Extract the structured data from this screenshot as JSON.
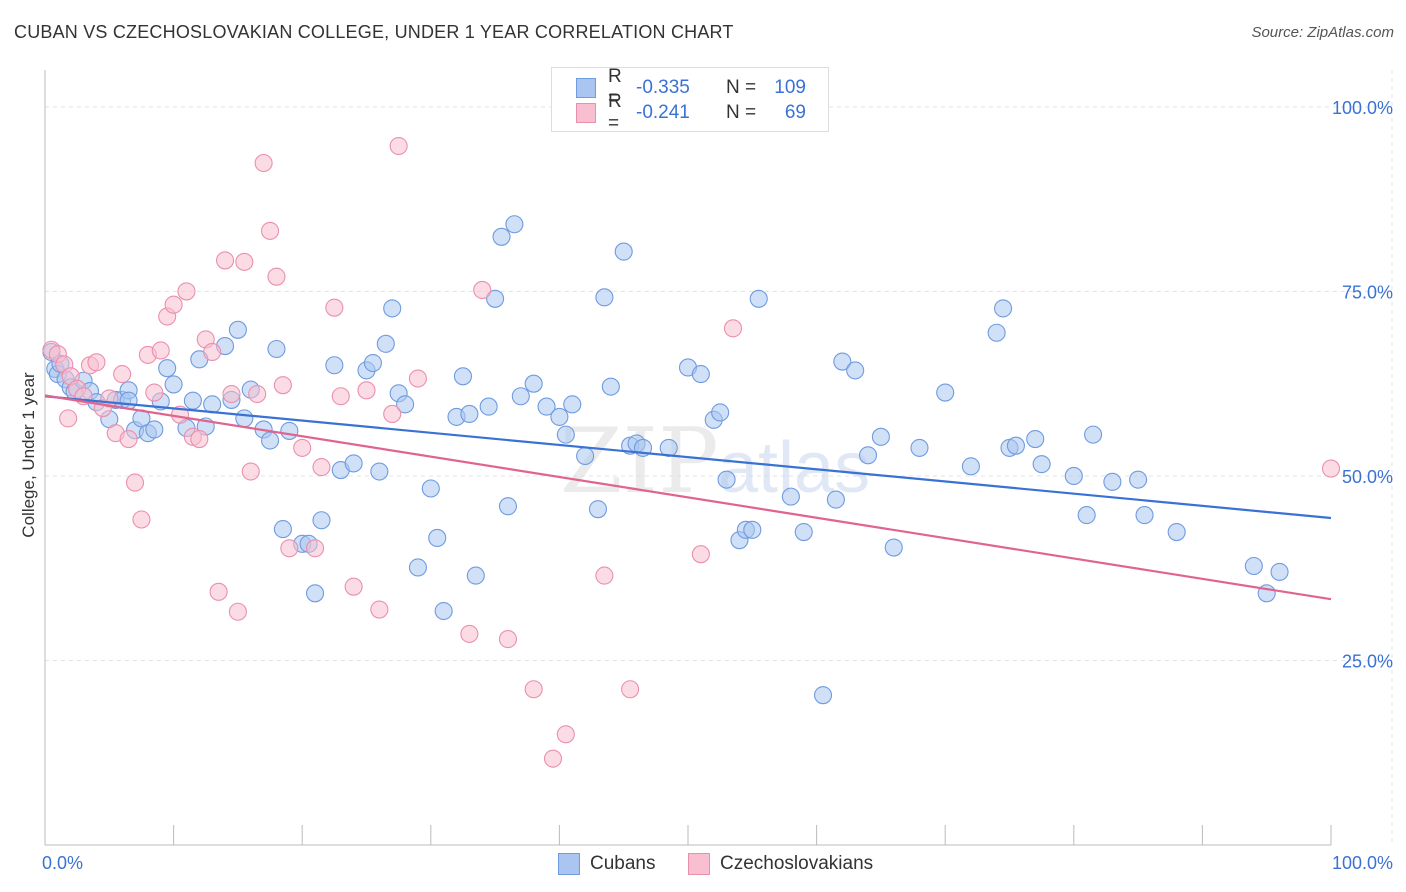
{
  "title": "CUBAN VS CZECHOSLOVAKIAN COLLEGE, UNDER 1 YEAR CORRELATION CHART",
  "source": "Source: ZipAtlas.com",
  "watermark": {
    "zip": "ZIP",
    "atlas": "atlas"
  },
  "legend": {
    "r_label": "R =",
    "n_label": "N =",
    "rows": [
      {
        "series": "Cubans",
        "r": "-0.335",
        "n": "109",
        "fill": "#aac6f0",
        "stroke": "#6f9be0"
      },
      {
        "series": "Czechoslovakians",
        "r": "-0.241",
        "n": "69",
        "fill": "#f7bfd0",
        "stroke": "#eb8fae"
      }
    ]
  },
  "bottom_legend": [
    "Cubans",
    "Czechoslovakians"
  ],
  "chart_data": {
    "type": "scatter",
    "xlabel": "",
    "ylabel": "College, Under 1 year",
    "xlim": [
      0,
      100
    ],
    "ylim": [
      0,
      105
    ],
    "x_tick_labels": [
      "0.0%",
      "100.0%"
    ],
    "y_tick_labels": [
      "25.0%",
      "50.0%",
      "75.0%",
      "100.0%"
    ],
    "y_ticks": [
      25,
      50,
      75,
      100
    ],
    "grid": true,
    "legend_position": "top-center",
    "series": [
      {
        "name": "Cubans",
        "color": "#3a72d4",
        "trend": {
          "x": [
            0,
            100
          ],
          "y": [
            60.8,
            44.3
          ]
        },
        "points": [
          [
            0.5,
            66.8
          ],
          [
            0.8,
            64.5
          ],
          [
            1.0,
            63.8
          ],
          [
            1.2,
            65.2
          ],
          [
            1.6,
            63.1
          ],
          [
            2.0,
            62.0
          ],
          [
            2.3,
            61.4
          ],
          [
            3.0,
            62.9
          ],
          [
            3.5,
            61.5
          ],
          [
            4.0,
            60.0
          ],
          [
            5.0,
            57.7
          ],
          [
            5.5,
            60.3
          ],
          [
            6.0,
            60.3
          ],
          [
            6.5,
            61.6
          ],
          [
            6.5,
            60.2
          ],
          [
            7.0,
            56.2
          ],
          [
            7.5,
            57.8
          ],
          [
            8.0,
            55.8
          ],
          [
            8.5,
            56.3
          ],
          [
            9.0,
            60.1
          ],
          [
            9.5,
            64.6
          ],
          [
            10.0,
            62.4
          ],
          [
            11.0,
            56.5
          ],
          [
            11.5,
            60.2
          ],
          [
            12.0,
            65.8
          ],
          [
            12.5,
            56.7
          ],
          [
            13.0,
            59.7
          ],
          [
            14.0,
            67.6
          ],
          [
            14.5,
            60.3
          ],
          [
            15.0,
            69.8
          ],
          [
            15.5,
            57.8
          ],
          [
            16.0,
            61.7
          ],
          [
            17.0,
            56.3
          ],
          [
            17.5,
            54.8
          ],
          [
            18.0,
            67.2
          ],
          [
            18.5,
            42.8
          ],
          [
            19.0,
            56.1
          ],
          [
            20.0,
            40.8
          ],
          [
            20.5,
            40.8
          ],
          [
            21.0,
            34.1
          ],
          [
            21.5,
            44.0
          ],
          [
            22.5,
            65.0
          ],
          [
            23.0,
            50.8
          ],
          [
            24.0,
            51.7
          ],
          [
            25.0,
            64.3
          ],
          [
            25.5,
            65.3
          ],
          [
            26.0,
            50.6
          ],
          [
            26.5,
            67.9
          ],
          [
            27.0,
            72.7
          ],
          [
            27.5,
            61.2
          ],
          [
            28.0,
            59.7
          ],
          [
            29.0,
            37.6
          ],
          [
            30.0,
            48.3
          ],
          [
            30.5,
            41.6
          ],
          [
            31.0,
            31.7
          ],
          [
            32.0,
            58.0
          ],
          [
            32.5,
            63.5
          ],
          [
            33.0,
            58.4
          ],
          [
            33.5,
            36.5
          ],
          [
            34.5,
            59.4
          ],
          [
            35.0,
            74.0
          ],
          [
            35.5,
            82.4
          ],
          [
            36.0,
            45.9
          ],
          [
            36.5,
            84.1
          ],
          [
            37.0,
            60.8
          ],
          [
            38.0,
            62.5
          ],
          [
            39.0,
            59.4
          ],
          [
            40.0,
            58.0
          ],
          [
            40.5,
            55.6
          ],
          [
            41.0,
            59.7
          ],
          [
            42.0,
            52.7
          ],
          [
            43.0,
            45.5
          ],
          [
            43.5,
            74.2
          ],
          [
            44.0,
            62.1
          ],
          [
            45.0,
            80.4
          ],
          [
            45.5,
            54.1
          ],
          [
            46.0,
            54.4
          ],
          [
            46.5,
            53.8
          ],
          [
            48.5,
            53.8
          ],
          [
            50.0,
            64.7
          ],
          [
            51.0,
            63.8
          ],
          [
            52.0,
            57.6
          ],
          [
            52.5,
            58.6
          ],
          [
            53.0,
            49.5
          ],
          [
            54.0,
            41.3
          ],
          [
            54.5,
            42.7
          ],
          [
            55.0,
            42.7
          ],
          [
            55.5,
            74.0
          ],
          [
            58.0,
            47.2
          ],
          [
            59.0,
            42.4
          ],
          [
            60.5,
            20.3
          ],
          [
            61.5,
            46.8
          ],
          [
            62.0,
            65.5
          ],
          [
            63.0,
            64.3
          ],
          [
            64.0,
            52.8
          ],
          [
            65.0,
            55.3
          ],
          [
            66.0,
            40.3
          ],
          [
            68.0,
            53.8
          ],
          [
            70.0,
            61.3
          ],
          [
            72.0,
            51.3
          ],
          [
            74.0,
            69.4
          ],
          [
            74.5,
            72.7
          ],
          [
            75.0,
            53.8
          ],
          [
            75.5,
            54.1
          ],
          [
            77.0,
            55.0
          ],
          [
            77.5,
            51.6
          ],
          [
            80.0,
            50.0
          ],
          [
            81.0,
            44.7
          ],
          [
            81.5,
            55.6
          ],
          [
            83.0,
            49.2
          ],
          [
            85.0,
            49.5
          ],
          [
            85.5,
            44.7
          ],
          [
            88.0,
            42.4
          ],
          [
            94.0,
            37.8
          ],
          [
            95.0,
            34.1
          ],
          [
            96.0,
            37.0
          ]
        ]
      },
      {
        "name": "Czechoslovakians",
        "color": "#e0648e",
        "trend": {
          "x": [
            0,
            100
          ],
          "y": [
            60.9,
            33.3
          ]
        },
        "points": [
          [
            0.5,
            67.1
          ],
          [
            1.0,
            66.5
          ],
          [
            1.5,
            65.1
          ],
          [
            1.8,
            57.8
          ],
          [
            2.0,
            63.5
          ],
          [
            2.5,
            61.8
          ],
          [
            3.0,
            60.8
          ],
          [
            3.5,
            65.0
          ],
          [
            4.0,
            65.4
          ],
          [
            4.5,
            59.2
          ],
          [
            5.0,
            60.5
          ],
          [
            5.5,
            55.8
          ],
          [
            6.0,
            63.8
          ],
          [
            6.5,
            55.0
          ],
          [
            7.0,
            49.1
          ],
          [
            7.5,
            44.1
          ],
          [
            8.0,
            66.4
          ],
          [
            8.5,
            61.3
          ],
          [
            9.0,
            67.0
          ],
          [
            9.5,
            71.6
          ],
          [
            10.0,
            73.2
          ],
          [
            10.5,
            58.3
          ],
          [
            11.0,
            75.0
          ],
          [
            11.5,
            55.3
          ],
          [
            12.0,
            55.0
          ],
          [
            12.5,
            68.5
          ],
          [
            13.0,
            66.8
          ],
          [
            13.5,
            34.3
          ],
          [
            14.0,
            79.2
          ],
          [
            14.5,
            61.1
          ],
          [
            15.0,
            31.6
          ],
          [
            15.5,
            79.0
          ],
          [
            16.0,
            50.6
          ],
          [
            16.5,
            61.1
          ],
          [
            17.0,
            92.4
          ],
          [
            17.5,
            83.2
          ],
          [
            18.0,
            77.0
          ],
          [
            18.5,
            62.3
          ],
          [
            19.0,
            40.2
          ],
          [
            20.0,
            53.8
          ],
          [
            21.0,
            40.2
          ],
          [
            21.5,
            51.2
          ],
          [
            22.5,
            72.8
          ],
          [
            23.0,
            60.8
          ],
          [
            24.0,
            35.0
          ],
          [
            25.0,
            61.6
          ],
          [
            26.0,
            31.9
          ],
          [
            27.0,
            58.4
          ],
          [
            27.5,
            94.7
          ],
          [
            29.0,
            63.2
          ],
          [
            33.0,
            28.6
          ],
          [
            34.0,
            75.2
          ],
          [
            36.0,
            27.9
          ],
          [
            38.0,
            21.1
          ],
          [
            39.5,
            11.7
          ],
          [
            40.5,
            15.0
          ],
          [
            43.5,
            36.5
          ],
          [
            45.5,
            21.1
          ],
          [
            51.0,
            39.4
          ],
          [
            53.5,
            70.0
          ],
          [
            100.0,
            51.0
          ]
        ]
      }
    ]
  }
}
